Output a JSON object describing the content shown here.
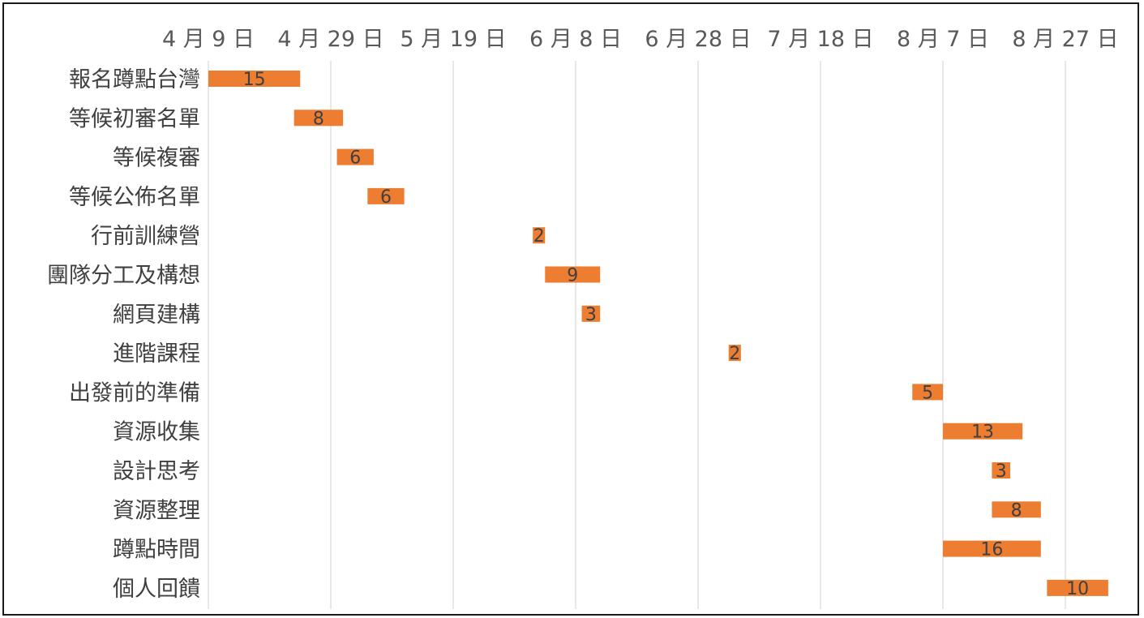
{
  "chart_data": {
    "type": "bar",
    "orientation": "horizontal",
    "subtype": "gantt",
    "x_axis": {
      "ticks": [
        "4 月 9 日",
        "4 月 29 日",
        "5 月 19 日",
        "6 月 8 日",
        "6 月 28 日",
        "7 月 18 日",
        "8 月 7 日",
        "8 月 27 日"
      ],
      "tick_dates": [
        "04-09",
        "04-29",
        "05-19",
        "06-08",
        "06-28",
        "07-18",
        "08-07",
        "08-27"
      ],
      "min": "04-09",
      "max": "09-05",
      "position": "top",
      "grid": true
    },
    "categories": [
      "報名蹲點台灣",
      "等候初審名單",
      "等候複審",
      "等候公佈名單",
      "行前訓練營",
      "團隊分工及構想",
      "網頁建構",
      "進階課程",
      "出發前的準備",
      "資源收集",
      "設計思考",
      "資源整理",
      "蹲點時間",
      "個人回饋"
    ],
    "start_dates": [
      "04-09",
      "04-23",
      "04-30",
      "05-05",
      "06-01",
      "06-03",
      "06-09",
      "07-03",
      "08-02",
      "08-07",
      "08-15",
      "08-15",
      "08-07",
      "08-24"
    ],
    "durations": [
      15,
      8,
      6,
      6,
      2,
      9,
      3,
      2,
      5,
      13,
      3,
      8,
      16,
      10
    ],
    "data_labels": [
      "15",
      "8",
      "6",
      "6",
      "2",
      "9",
      "3",
      "2",
      "5",
      "13",
      "3",
      "8",
      "16",
      "10"
    ],
    "bar_color": "#ed7d31",
    "legend": "none"
  }
}
